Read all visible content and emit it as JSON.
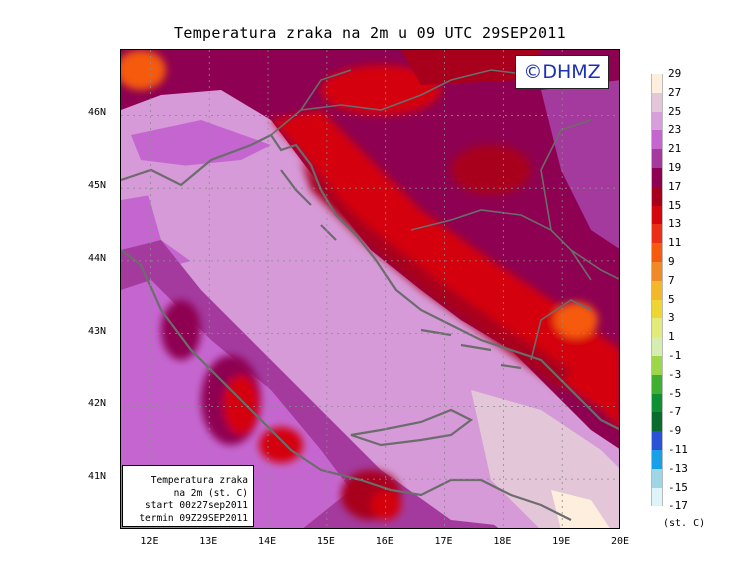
{
  "title": "Temperatura zraka na 2m u 09 UTC 29SEP2011",
  "logo": "©DHMZ",
  "info_box": [
    "Temperatura zraka",
    "na 2m (st. C)",
    "start 00z27sep2011",
    "termin 09Z29SEP2011"
  ],
  "lat_labels": [
    "46N",
    "45N",
    "44N",
    "43N",
    "42N",
    "41N"
  ],
  "lon_labels": [
    "12E",
    "13E",
    "14E",
    "15E",
    "16E",
    "17E",
    "18E",
    "19E",
    "20E"
  ],
  "colorbar": {
    "labels": [
      "29",
      "27",
      "25",
      "23",
      "21",
      "19",
      "17",
      "15",
      "13",
      "11",
      "9",
      "7",
      "5",
      "3",
      "1",
      "-1",
      "-3",
      "-5",
      "-7",
      "-9",
      "-11",
      "-13",
      "-15",
      "-17"
    ],
    "colors": [
      "#fdeedd",
      "#e3c7d8",
      "#d89ddb",
      "#c566d0",
      "#a43a9e",
      "#8e0051",
      "#a8001c",
      "#d4050d",
      "#ea2f16",
      "#f55a0f",
      "#f08a26",
      "#f2b82a",
      "#eed531",
      "#e2ea7a",
      "#d6edb1",
      "#9ed64a",
      "#3fae31",
      "#0f8f34",
      "#0a6c2c",
      "#2a52d6",
      "#17a0e7",
      "#9fd6e6",
      "#dff4f8"
    ],
    "units": "(st. C)"
  },
  "map": {
    "extent_lon": [
      11.5,
      20.0
    ],
    "extent_lat": [
      40.3,
      46.9
    ],
    "grid_step_deg": 1,
    "gridlines": "dotted"
  }
}
